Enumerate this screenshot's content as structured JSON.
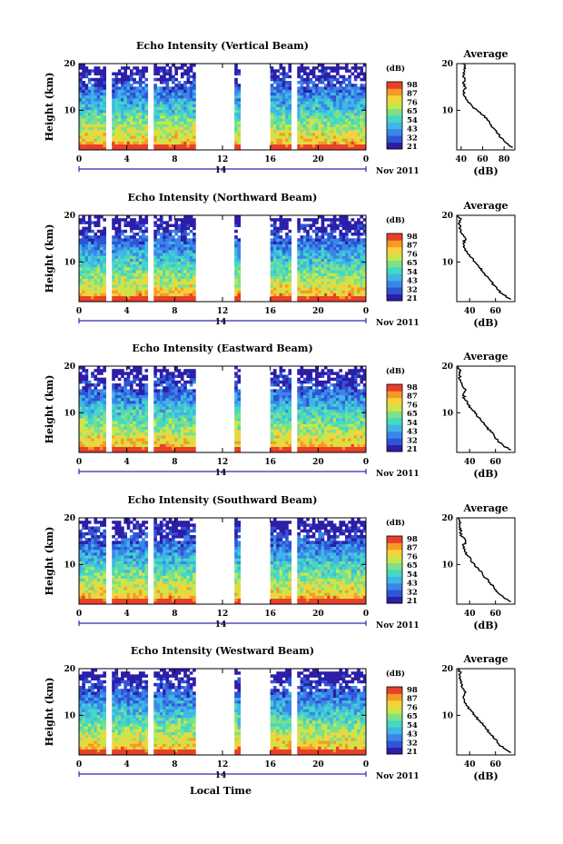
{
  "chart_data": [
    {
      "type": "heatmap",
      "title": "Echo Intensity (Vertical Beam)",
      "ylabel": "Height (km)",
      "xlabel": "",
      "x_ticks": [
        "0",
        "4",
        "8",
        "12",
        "16",
        "20",
        "0"
      ],
      "xlim": [
        0,
        24
      ],
      "y_ticks": [
        "20",
        "10"
      ],
      "ylim": [
        1.5,
        20
      ],
      "date_day": "14",
      "date_label": "Nov 2011",
      "data_gaps_hours": [
        [
          2.3,
          2.8
        ],
        [
          5.8,
          6.3
        ],
        [
          9.8,
          13.0
        ],
        [
          13.6,
          15.9
        ],
        [
          17.8,
          18.2
        ]
      ],
      "value_note": "echo intensity decreases with height",
      "colorbar": {
        "label": "(dB)",
        "ticks": [
          "98",
          "87",
          "76",
          "65",
          "54",
          "43",
          "32",
          "21"
        ],
        "range": [
          21,
          98
        ]
      },
      "average_profile": {
        "title": "Average",
        "xlabel": "(dB)",
        "x_ticks": [
          "40",
          "60",
          "80"
        ],
        "xlim": [
          36,
          90
        ],
        "y_ticks": [
          "20",
          "10"
        ],
        "height_km": [
          2,
          3,
          4,
          5,
          6,
          7,
          8,
          9,
          10,
          11,
          12,
          13,
          14,
          15,
          16,
          17,
          18,
          19,
          20
        ],
        "db": [
          88,
          82,
          78,
          74,
          71,
          67,
          64,
          60,
          55,
          50,
          46,
          43,
          42,
          44,
          42,
          43,
          42,
          44,
          42
        ]
      }
    },
    {
      "type": "heatmap",
      "title": "Echo Intensity (Northward Beam)",
      "ylabel": "Height (km)",
      "xlabel": "",
      "x_ticks": [
        "0",
        "4",
        "8",
        "12",
        "16",
        "20",
        "0"
      ],
      "xlim": [
        0,
        24
      ],
      "y_ticks": [
        "20",
        "10"
      ],
      "ylim": [
        1.5,
        20
      ],
      "date_day": "14",
      "date_label": "Nov 2011",
      "data_gaps_hours": [
        [
          2.3,
          2.8
        ],
        [
          5.8,
          6.3
        ],
        [
          9.8,
          13.0
        ],
        [
          13.6,
          15.9
        ],
        [
          17.8,
          18.2
        ]
      ],
      "colorbar": {
        "label": "(dB)",
        "ticks": [
          "98",
          "87",
          "76",
          "65",
          "54",
          "43",
          "32",
          "21"
        ],
        "range": [
          21,
          98
        ]
      },
      "average_profile": {
        "title": "Average",
        "xlabel": "(dB)",
        "x_ticks": [
          "40",
          "60"
        ],
        "xlim": [
          30,
          75
        ],
        "y_ticks": [
          "20",
          "10"
        ],
        "height_km": [
          2,
          3,
          4,
          5,
          6,
          7,
          8,
          9,
          10,
          11,
          12,
          13,
          14,
          15,
          16,
          17,
          18,
          19,
          20
        ],
        "db": [
          72,
          66,
          62,
          59,
          56,
          53,
          50,
          47,
          44,
          41,
          38,
          36,
          35,
          37,
          34,
          33,
          32,
          33,
          31
        ]
      }
    },
    {
      "type": "heatmap",
      "title": "Echo Intensity (Eastward Beam)",
      "ylabel": "Height (km)",
      "xlabel": "",
      "x_ticks": [
        "0",
        "4",
        "8",
        "12",
        "16",
        "20",
        "0"
      ],
      "xlim": [
        0,
        24
      ],
      "y_ticks": [
        "20",
        "10"
      ],
      "ylim": [
        1.5,
        20
      ],
      "date_day": "14",
      "date_label": "Nov 2011",
      "data_gaps_hours": [
        [
          2.3,
          2.8
        ],
        [
          5.8,
          6.3
        ],
        [
          9.8,
          13.0
        ],
        [
          13.6,
          15.9
        ],
        [
          17.8,
          18.2
        ]
      ],
      "colorbar": {
        "label": "(dB)",
        "ticks": [
          "98",
          "87",
          "76",
          "65",
          "54",
          "43",
          "32",
          "21"
        ],
        "range": [
          21,
          98
        ]
      },
      "average_profile": {
        "title": "Average",
        "xlabel": "(dB)",
        "x_ticks": [
          "40",
          "60"
        ],
        "xlim": [
          30,
          75
        ],
        "y_ticks": [
          "20",
          "10"
        ],
        "height_km": [
          2,
          3,
          4,
          5,
          6,
          7,
          8,
          9,
          10,
          11,
          12,
          13,
          14,
          15,
          16,
          17,
          18,
          19,
          20
        ],
        "db": [
          72,
          66,
          62,
          59,
          56,
          53,
          50,
          47,
          44,
          41,
          38,
          36,
          35,
          37,
          34,
          33,
          32,
          33,
          31
        ]
      }
    },
    {
      "type": "heatmap",
      "title": "Echo Intensity (Southward Beam)",
      "ylabel": "Height (km)",
      "xlabel": "",
      "x_ticks": [
        "0",
        "4",
        "8",
        "12",
        "16",
        "20",
        "0"
      ],
      "xlim": [
        0,
        24
      ],
      "y_ticks": [
        "20",
        "10"
      ],
      "ylim": [
        1.5,
        20
      ],
      "date_day": "14",
      "date_label": "Nov 2011",
      "data_gaps_hours": [
        [
          2.3,
          2.8
        ],
        [
          5.8,
          6.3
        ],
        [
          9.8,
          13.0
        ],
        [
          13.6,
          15.9
        ],
        [
          17.8,
          18.2
        ]
      ],
      "colorbar": {
        "label": "(dB)",
        "ticks": [
          "98",
          "87",
          "76",
          "65",
          "54",
          "43",
          "32",
          "21"
        ],
        "range": [
          21,
          98
        ]
      },
      "average_profile": {
        "title": "Average",
        "xlabel": "(dB)",
        "x_ticks": [
          "40",
          "60"
        ],
        "xlim": [
          30,
          75
        ],
        "y_ticks": [
          "20",
          "10"
        ],
        "height_km": [
          2,
          3,
          4,
          5,
          6,
          7,
          8,
          9,
          10,
          11,
          12,
          13,
          14,
          15,
          16,
          17,
          18,
          19,
          20
        ],
        "db": [
          72,
          66,
          62,
          59,
          56,
          53,
          50,
          47,
          44,
          41,
          38,
          36,
          35,
          37,
          34,
          33,
          32,
          33,
          31
        ]
      }
    },
    {
      "type": "heatmap",
      "title": "Echo Intensity (Westward Beam)",
      "ylabel": "Height (km)",
      "xlabel": "Local Time",
      "x_ticks": [
        "0",
        "4",
        "8",
        "12",
        "16",
        "20",
        "0"
      ],
      "xlim": [
        0,
        24
      ],
      "y_ticks": [
        "20",
        "10"
      ],
      "ylim": [
        1.5,
        20
      ],
      "date_day": "14",
      "date_label": "Nov 2011",
      "data_gaps_hours": [
        [
          2.3,
          2.8
        ],
        [
          5.8,
          6.3
        ],
        [
          9.8,
          13.0
        ],
        [
          13.6,
          15.9
        ],
        [
          17.8,
          18.2
        ]
      ],
      "colorbar": {
        "label": "(dB)",
        "ticks": [
          "98",
          "87",
          "76",
          "65",
          "54",
          "43",
          "32",
          "21"
        ],
        "range": [
          21,
          98
        ]
      },
      "average_profile": {
        "title": "Average",
        "xlabel": "(dB)",
        "x_ticks": [
          "40",
          "60"
        ],
        "xlim": [
          30,
          75
        ],
        "y_ticks": [
          "20",
          "10"
        ],
        "height_km": [
          2,
          3,
          4,
          5,
          6,
          7,
          8,
          9,
          10,
          11,
          12,
          13,
          14,
          15,
          16,
          17,
          18,
          19,
          20
        ],
        "db": [
          72,
          66,
          62,
          59,
          56,
          53,
          50,
          47,
          44,
          41,
          38,
          36,
          35,
          37,
          34,
          33,
          32,
          33,
          31
        ]
      }
    }
  ],
  "colors": {
    "scale": [
      "#2d1ea8",
      "#2f55d6",
      "#3a86e8",
      "#3fb6e6",
      "#43d9c2",
      "#7ee08a",
      "#c9e64a",
      "#f6d23a",
      "#f59a26",
      "#e8402a"
    ],
    "text": "#000000"
  }
}
